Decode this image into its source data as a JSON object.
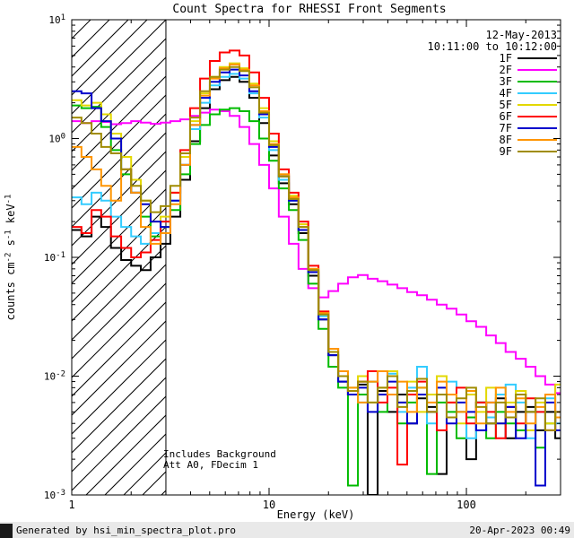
{
  "title": "Count Spectra for RHESSI Front Segments",
  "header": {
    "date": "12-May-2013",
    "time_range": "10:11:00 to 10:12:00"
  },
  "annotations": {
    "line1": "Includes Background",
    "line2": "Att A0, FDecim 1"
  },
  "footer": {
    "left": "Generated by hsi_min_spectra_plot.pro",
    "right": "20-Apr-2023 00:49"
  },
  "chart_data": {
    "type": "line",
    "title": "Count Spectra for RHESSI Front Segments",
    "xlabel": "Energy (keV)",
    "ylabel": "counts cm^-2 s^-1 keV^-1",
    "x_scale": "log",
    "y_scale": "log",
    "xlim": [
      1,
      300
    ],
    "ylim": [
      0.001,
      10
    ],
    "grid": false,
    "step": true,
    "legend_position": "top-right-inside",
    "hatch_region": {
      "xmin": 1,
      "xmax": 3
    },
    "x_ticks": [
      {
        "value": 1,
        "label": "1"
      },
      {
        "value": 10,
        "label": "10"
      },
      {
        "value": 100,
        "label": "100"
      }
    ],
    "y_ticks": [
      {
        "value": 10,
        "label": "10^1"
      },
      {
        "value": 1,
        "label": "10^0"
      },
      {
        "value": 0.1,
        "label": "10^-1"
      },
      {
        "value": 0.01,
        "label": "10^-2"
      },
      {
        "value": 0.001,
        "label": "10^-3"
      }
    ],
    "energies": [
      1.0,
      1.12,
      1.26,
      1.41,
      1.58,
      1.78,
      2.0,
      2.24,
      2.51,
      2.82,
      3.16,
      3.55,
      3.98,
      4.47,
      5.01,
      5.62,
      6.31,
      7.08,
      7.94,
      8.91,
      10.0,
      11.2,
      12.6,
      14.1,
      15.8,
      17.8,
      20.0,
      22.4,
      25.1,
      28.2,
      31.6,
      35.5,
      39.8,
      44.7,
      50.1,
      56.2,
      63.1,
      70.8,
      79.4,
      89.1,
      100.0,
      112.0,
      126.0,
      141.0,
      158.0,
      178.0,
      200.0,
      224.0,
      251.0,
      282.0,
      316.0
    ],
    "series": [
      {
        "name": "1F",
        "color": "#000000",
        "values": [
          0.17,
          0.15,
          0.22,
          0.18,
          0.12,
          0.095,
          0.085,
          0.078,
          0.1,
          0.13,
          0.22,
          0.45,
          0.95,
          1.8,
          2.6,
          3.1,
          3.3,
          3.0,
          2.2,
          1.35,
          0.72,
          0.42,
          0.28,
          0.16,
          0.07,
          0.03,
          0.015,
          0.009,
          0.007,
          0.0085,
          0.001,
          0.0075,
          0.005,
          0.007,
          0.004,
          0.0065,
          0.0055,
          0.0015,
          0.007,
          0.005,
          0.002,
          0.006,
          0.004,
          0.0065,
          0.003,
          0.005,
          0.0055,
          0.0035,
          0.005,
          0.003,
          0.004
        ]
      },
      {
        "name": "2F",
        "color": "#ff00ff",
        "values": [
          1.4,
          1.35,
          1.4,
          1.38,
          1.32,
          1.35,
          1.4,
          1.36,
          1.33,
          1.36,
          1.4,
          1.45,
          1.55,
          1.65,
          1.75,
          1.7,
          1.55,
          1.25,
          0.9,
          0.6,
          0.38,
          0.22,
          0.13,
          0.08,
          0.055,
          0.046,
          0.052,
          0.06,
          0.068,
          0.071,
          0.066,
          0.063,
          0.059,
          0.055,
          0.051,
          0.048,
          0.044,
          0.04,
          0.037,
          0.033,
          0.029,
          0.026,
          0.022,
          0.019,
          0.016,
          0.014,
          0.012,
          0.01,
          0.0085,
          0.0072,
          0.006
        ]
      },
      {
        "name": "3F",
        "color": "#00bb00",
        "values": [
          1.9,
          1.8,
          1.85,
          1.25,
          0.8,
          0.5,
          0.35,
          0.22,
          0.15,
          0.18,
          0.25,
          0.5,
          0.9,
          1.3,
          1.6,
          1.75,
          1.8,
          1.7,
          1.4,
          1.0,
          0.65,
          0.38,
          0.25,
          0.14,
          0.06,
          0.025,
          0.012,
          0.008,
          0.0012,
          0.007,
          0.009,
          0.005,
          0.007,
          0.004,
          0.006,
          0.008,
          0.0015,
          0.006,
          0.005,
          0.003,
          0.0045,
          0.006,
          0.003,
          0.005,
          0.004,
          0.0035,
          0.005,
          0.0025,
          0.004,
          0.0045,
          0.003
        ]
      },
      {
        "name": "4F",
        "color": "#33ccff",
        "values": [
          0.32,
          0.28,
          0.35,
          0.3,
          0.22,
          0.18,
          0.15,
          0.13,
          0.16,
          0.2,
          0.3,
          0.6,
          1.2,
          2.0,
          2.8,
          3.3,
          3.5,
          3.2,
          2.4,
          1.5,
          0.8,
          0.45,
          0.3,
          0.17,
          0.075,
          0.032,
          0.016,
          0.01,
          0.008,
          0.006,
          0.009,
          0.007,
          0.0105,
          0.005,
          0.008,
          0.012,
          0.004,
          0.007,
          0.009,
          0.005,
          0.003,
          0.006,
          0.0045,
          0.007,
          0.0085,
          0.006,
          0.003,
          0.005,
          0.0065,
          0.004,
          0.005
        ]
      },
      {
        "name": "5F",
        "color": "#e3d800",
        "values": [
          2.1,
          1.9,
          2.0,
          1.6,
          1.1,
          0.7,
          0.45,
          0.3,
          0.2,
          0.22,
          0.35,
          0.7,
          1.4,
          2.4,
          3.3,
          4.0,
          4.3,
          3.9,
          2.9,
          1.8,
          0.95,
          0.5,
          0.33,
          0.19,
          0.08,
          0.035,
          0.017,
          0.011,
          0.008,
          0.01,
          0.006,
          0.008,
          0.011,
          0.006,
          0.009,
          0.005,
          0.007,
          0.01,
          0.006,
          0.004,
          0.007,
          0.005,
          0.008,
          0.004,
          0.006,
          0.0075,
          0.0035,
          0.006,
          0.004,
          0.0085,
          0.0045
        ]
      },
      {
        "name": "6F",
        "color": "#ff0000",
        "values": [
          0.18,
          0.16,
          0.25,
          0.22,
          0.15,
          0.12,
          0.1,
          0.11,
          0.14,
          0.2,
          0.35,
          0.8,
          1.8,
          3.2,
          4.5,
          5.3,
          5.5,
          5.0,
          3.6,
          2.2,
          1.1,
          0.55,
          0.35,
          0.2,
          0.085,
          0.035,
          0.017,
          0.01,
          0.007,
          0.009,
          0.011,
          0.006,
          0.008,
          0.0018,
          0.007,
          0.009,
          0.005,
          0.0035,
          0.006,
          0.008,
          0.004,
          0.006,
          0.005,
          0.003,
          0.0055,
          0.004,
          0.0065,
          0.005,
          0.0035,
          0.005,
          0.004
        ]
      },
      {
        "name": "7F",
        "color": "#0000cc",
        "values": [
          2.5,
          2.4,
          1.8,
          1.4,
          1.0,
          0.55,
          0.35,
          0.28,
          0.2,
          0.18,
          0.3,
          0.6,
          1.3,
          2.2,
          3.0,
          3.6,
          3.8,
          3.4,
          2.5,
          1.6,
          0.85,
          0.48,
          0.3,
          0.17,
          0.075,
          0.03,
          0.015,
          0.009,
          0.007,
          0.008,
          0.005,
          0.007,
          0.009,
          0.006,
          0.004,
          0.007,
          0.005,
          0.008,
          0.004,
          0.006,
          0.005,
          0.0035,
          0.006,
          0.004,
          0.0055,
          0.003,
          0.005,
          0.0012,
          0.006,
          0.0035,
          0.0045
        ]
      },
      {
        "name": "8F",
        "color": "#ff9500",
        "values": [
          0.85,
          0.7,
          0.55,
          0.4,
          0.3,
          0.55,
          0.35,
          0.18,
          0.13,
          0.16,
          0.28,
          0.6,
          1.3,
          2.3,
          3.2,
          3.9,
          4.2,
          3.8,
          2.8,
          1.7,
          0.9,
          0.5,
          0.32,
          0.18,
          0.08,
          0.034,
          0.017,
          0.011,
          0.008,
          0.006,
          0.009,
          0.011,
          0.007,
          0.009,
          0.005,
          0.008,
          0.006,
          0.009,
          0.007,
          0.005,
          0.0075,
          0.004,
          0.006,
          0.008,
          0.005,
          0.0065,
          0.004,
          0.0055,
          0.007,
          0.0045,
          0.006
        ]
      },
      {
        "name": "9F",
        "color": "#a08c00",
        "values": [
          1.5,
          1.35,
          1.1,
          0.85,
          0.75,
          0.55,
          0.4,
          0.3,
          0.24,
          0.27,
          0.4,
          0.75,
          1.5,
          2.5,
          3.3,
          3.8,
          4.0,
          3.7,
          2.7,
          1.65,
          0.88,
          0.48,
          0.31,
          0.18,
          0.078,
          0.033,
          0.016,
          0.01,
          0.0075,
          0.009,
          0.006,
          0.008,
          0.01,
          0.0055,
          0.0075,
          0.0095,
          0.005,
          0.007,
          0.0045,
          0.0065,
          0.008,
          0.0055,
          0.004,
          0.006,
          0.0045,
          0.007,
          0.005,
          0.0065,
          0.0035,
          0.005,
          0.0055
        ]
      }
    ]
  }
}
